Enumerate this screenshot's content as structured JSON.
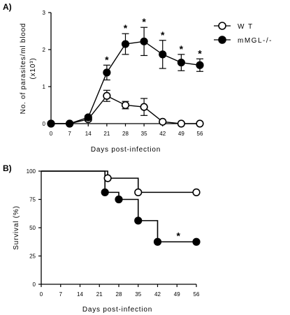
{
  "chart_data": [
    {
      "panel_label": "A)",
      "type": "line",
      "xlabel": "Days post-infection",
      "ylabel": "No. of parasites/ml blood",
      "ylabel_unit": "(x10³)",
      "x": [
        0,
        7,
        14,
        21,
        28,
        35,
        42,
        49,
        56
      ],
      "xlim": [
        0,
        56
      ],
      "ylim": [
        0,
        3
      ],
      "y_ticks": [
        "0",
        "1",
        "2",
        "3"
      ],
      "series": [
        {
          "name": "W T",
          "marker": "open-circle",
          "values": [
            0,
            0,
            0.12,
            0.75,
            0.5,
            0.45,
            0.05,
            0,
            0
          ],
          "errors": [
            0,
            0,
            0.05,
            0.15,
            0.1,
            0.23,
            0.03,
            0,
            0
          ]
        },
        {
          "name": "mMGL-/-",
          "marker": "filled-circle",
          "values": [
            0,
            0,
            0.17,
            1.38,
            2.15,
            2.22,
            1.87,
            1.65,
            1.58
          ],
          "errors": [
            0,
            0,
            0.05,
            0.2,
            0.28,
            0.38,
            0.38,
            0.22,
            0.17
          ]
        }
      ],
      "significance_marks": [
        {
          "x": 21,
          "label": "*"
        },
        {
          "x": 28,
          "label": "*"
        },
        {
          "x": 35,
          "label": "*"
        },
        {
          "x": 42,
          "label": "*"
        },
        {
          "x": 49,
          "label": "*"
        },
        {
          "x": 56,
          "label": "*"
        }
      ],
      "legend_position": "top-right",
      "grid": false
    },
    {
      "panel_label": "B)",
      "type": "line",
      "step": true,
      "xlabel": "Days post-infection",
      "ylabel": "Survival (%)",
      "x_ticks": [
        0,
        7,
        14,
        21,
        28,
        35,
        42,
        49,
        56
      ],
      "xlim": [
        0,
        56
      ],
      "ylim": [
        0,
        100
      ],
      "y_ticks": [
        0,
        25,
        50,
        75,
        100
      ],
      "series": [
        {
          "name": "W T",
          "marker": "open-circle",
          "steps": [
            [
              0,
              100
            ],
            [
              24,
              93.75
            ],
            [
              35,
              81.25
            ],
            [
              56,
              81.25
            ]
          ]
        },
        {
          "name": "mMGL-/-",
          "marker": "filled-circle",
          "steps": [
            [
              0,
              100
            ],
            [
              23,
              81.25
            ],
            [
              28,
              75
            ],
            [
              35,
              56.25
            ],
            [
              42,
              37.5
            ],
            [
              56,
              37.5
            ]
          ]
        }
      ],
      "significance_marks": [
        {
          "x": 49,
          "y": 41,
          "label": "*"
        }
      ],
      "grid": false
    }
  ]
}
